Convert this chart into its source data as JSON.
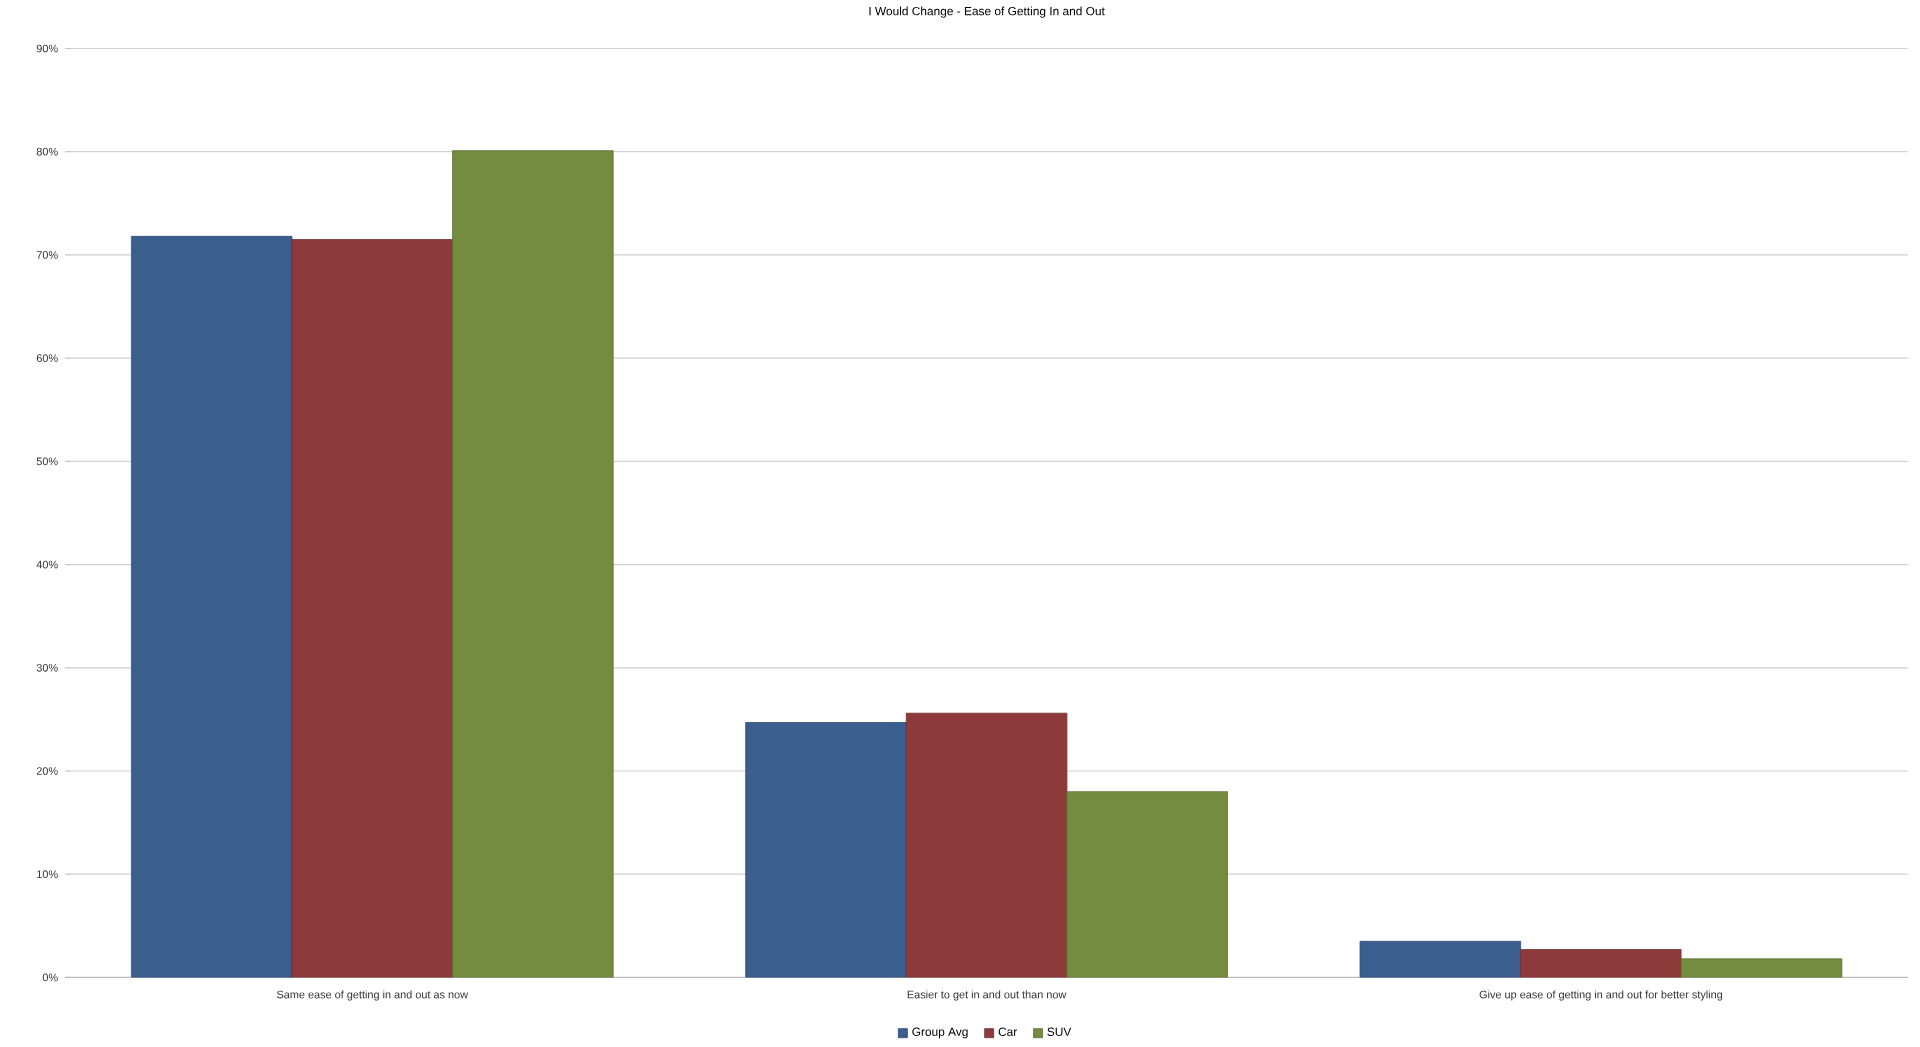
{
  "chart_data": {
    "type": "bar",
    "title": "I Would Change - Ease of Getting In and Out",
    "categories": [
      "Same ease of getting in and out as now",
      "Easier to get in and out than now",
      "Give up ease of getting in and out for better styling"
    ],
    "series": [
      {
        "name": "Group Avg",
        "color": "#3a5f8f",
        "values": [
          71.8,
          24.7,
          3.5
        ]
      },
      {
        "name": "Car",
        "color": "#8e3a3a",
        "values": [
          71.5,
          25.6,
          2.7
        ]
      },
      {
        "name": "SUV",
        "color": "#738c3f",
        "values": [
          80.1,
          18.0,
          1.8
        ]
      }
    ],
    "ylim": [
      0,
      90
    ],
    "yticks": [
      {
        "value": 0,
        "label": "0%"
      },
      {
        "value": 10,
        "label": "10%"
      },
      {
        "value": 20,
        "label": "20%"
      },
      {
        "value": 30,
        "label": "30%"
      },
      {
        "value": 40,
        "label": "40%"
      },
      {
        "value": 50,
        "label": "50%"
      },
      {
        "value": 60,
        "label": "60%"
      },
      {
        "value": 70,
        "label": "70%"
      },
      {
        "value": 80,
        "label": "80%"
      },
      {
        "value": 90,
        "label": "90%"
      }
    ],
    "grid": "y",
    "legend": "bottom"
  }
}
